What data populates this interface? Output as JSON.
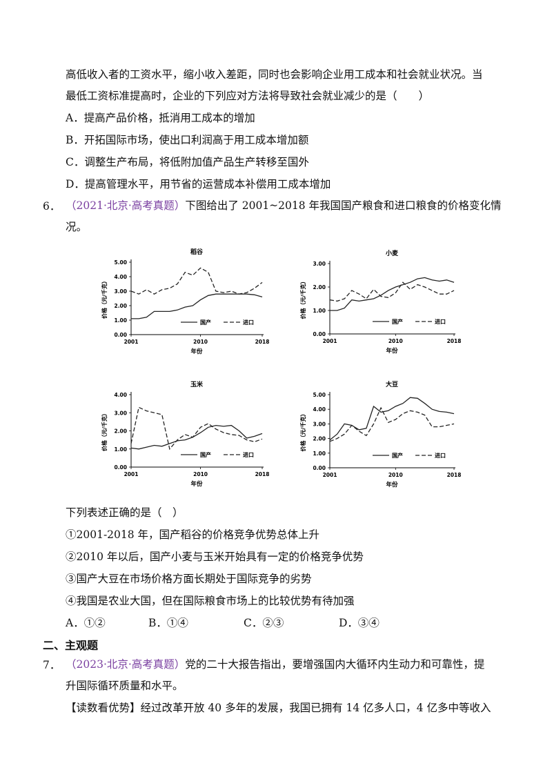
{
  "q5": {
    "line1": "高低收入者的工资水平，缩小收入差距，同时也会影响企业用工成本和社会就业状况。当",
    "line2": "最低工资标准提高时，企业的下列应对方法将导致社会就业减少的是（　　）",
    "options": [
      "A．提高产品价格，抵消用工成本的增加",
      "B．开拓国际市场，使出口利润高于用工成本增加额",
      "C．调整生产布局，将低附加值产品生产转移至国外",
      "D．提高管理水平，用节省的运营成本补偿用工成本增加"
    ]
  },
  "q6": {
    "number": "6．",
    "source": "（2021·北京·高考真题）",
    "stem1": "下图给出了 2001~2018 年我国国产粮食和进口粮食的价格变化情",
    "stem2": "况。",
    "prompt": "下列表述正确的是（　）",
    "statements": [
      "①2001-2018 年，国产稻谷的价格竞争优势总体上升",
      "②2010 年以后，国产小麦与玉米开始具有一定的价格竞争优势",
      "③国产大豆在市场价格方面长期处于国际竞争的劣势",
      "④我国是农业大国，但在国际粮食市场上的比较优势有待加强"
    ],
    "choices": [
      "A．①②",
      "B．①④",
      "C．②③",
      "D．③④"
    ]
  },
  "section": "二、主观题",
  "q7": {
    "number": "7．",
    "source": "（2023·北京·高考真题）",
    "stem1": "党的二十大报告指出，要增强国内大循环内生动力和可靠性，提",
    "stem2": "升国际循环质量和水平。",
    "para1": "【读数看优势】经过改革开放 40 多年的发展，我国已拥有 14 亿多人口，4 亿多中等收入"
  },
  "chart_data": [
    {
      "type": "line",
      "title": "稻谷",
      "xlabel": "年份",
      "ylabel": "价格（元/千克）",
      "xticks": [
        "2001",
        "2010",
        "2018"
      ],
      "ylim": [
        0,
        5
      ],
      "yticks": [
        "0.00",
        "1.00",
        "2.00",
        "3.00",
        "4.00",
        "5.00"
      ],
      "x": [
        2001,
        2002,
        2003,
        2004,
        2005,
        2006,
        2007,
        2008,
        2009,
        2010,
        2011,
        2012,
        2013,
        2014,
        2015,
        2016,
        2017,
        2018
      ],
      "series": [
        {
          "name": "国产",
          "style": "solid",
          "values": [
            1.1,
            1.1,
            1.2,
            1.6,
            1.6,
            1.6,
            1.7,
            1.9,
            2.0,
            2.4,
            2.7,
            2.8,
            2.8,
            2.8,
            2.8,
            2.8,
            2.75,
            2.6
          ]
        },
        {
          "name": "进口",
          "style": "dashed",
          "values": [
            3.0,
            2.8,
            3.1,
            2.8,
            3.1,
            3.2,
            3.5,
            4.3,
            4.1,
            4.6,
            4.3,
            3.0,
            2.9,
            3.0,
            2.8,
            2.9,
            3.2,
            3.6
          ]
        }
      ]
    },
    {
      "type": "line",
      "title": "小麦",
      "xlabel": "年份",
      "ylabel": "价格（元/千克）",
      "xticks": [
        "2001",
        "2010",
        "2018"
      ],
      "ylim": [
        0,
        3
      ],
      "yticks": [
        "0.00",
        "1.00",
        "2.00",
        "3.00"
      ],
      "x": [
        2001,
        2002,
        2003,
        2004,
        2005,
        2006,
        2007,
        2008,
        2009,
        2010,
        2011,
        2012,
        2013,
        2014,
        2015,
        2016,
        2017,
        2018
      ],
      "series": [
        {
          "name": "国产",
          "style": "solid",
          "values": [
            1.0,
            1.0,
            1.1,
            1.45,
            1.4,
            1.45,
            1.5,
            1.65,
            1.85,
            2.0,
            2.1,
            2.2,
            2.35,
            2.4,
            2.3,
            2.25,
            2.3,
            2.2
          ]
        },
        {
          "name": "进口",
          "style": "dashed",
          "values": [
            1.45,
            1.4,
            1.5,
            1.85,
            1.7,
            1.5,
            1.9,
            1.6,
            1.55,
            1.75,
            2.2,
            1.9,
            2.1,
            2.0,
            1.85,
            1.7,
            1.7,
            1.85
          ]
        }
      ]
    },
    {
      "type": "line",
      "title": "玉米",
      "xlabel": "年份",
      "ylabel": "价格（元/千克）",
      "xticks": [
        "2001",
        "2010",
        "2018"
      ],
      "ylim": [
        0,
        4
      ],
      "yticks": [
        "0.00",
        "1.00",
        "2.00",
        "3.00",
        "4.00"
      ],
      "x": [
        2001,
        2002,
        2003,
        2004,
        2005,
        2006,
        2007,
        2008,
        2009,
        2010,
        2011,
        2012,
        2013,
        2014,
        2015,
        2016,
        2017,
        2018
      ],
      "series": [
        {
          "name": "国产",
          "style": "solid",
          "values": [
            1.05,
            1.0,
            1.1,
            1.2,
            1.15,
            1.3,
            1.45,
            1.5,
            1.65,
            1.9,
            2.2,
            2.3,
            2.25,
            2.3,
            2.0,
            1.6,
            1.7,
            1.85
          ]
        },
        {
          "name": "进口",
          "style": "dashed",
          "values": [
            1.3,
            3.3,
            3.1,
            3.0,
            2.9,
            1.0,
            1.5,
            1.8,
            1.65,
            2.2,
            2.4,
            2.1,
            1.9,
            1.8,
            1.75,
            1.5,
            1.4,
            1.55
          ]
        }
      ]
    },
    {
      "type": "line",
      "title": "大豆",
      "xlabel": "年份",
      "ylabel": "价格（元/千克）",
      "xticks": [
        "2001",
        "2010",
        "2018"
      ],
      "ylim": [
        0,
        5
      ],
      "yticks": [
        "0.00",
        "1.00",
        "2.00",
        "3.00",
        "4.00",
        "5.00"
      ],
      "x": [
        2001,
        2002,
        2003,
        2004,
        2005,
        2006,
        2007,
        2008,
        2009,
        2010,
        2011,
        2012,
        2013,
        2014,
        2015,
        2016,
        2017,
        2018
      ],
      "series": [
        {
          "name": "国产",
          "style": "solid",
          "values": [
            1.9,
            2.3,
            3.0,
            2.9,
            2.6,
            2.7,
            4.2,
            3.8,
            3.9,
            4.2,
            4.4,
            4.8,
            4.75,
            4.4,
            4.0,
            3.85,
            3.8,
            3.7
          ]
        },
        {
          "name": "进口",
          "style": "dashed",
          "values": [
            1.8,
            2.0,
            2.3,
            2.9,
            2.5,
            2.2,
            3.0,
            4.1,
            3.1,
            3.3,
            3.7,
            3.9,
            3.8,
            3.6,
            2.8,
            2.8,
            2.9,
            3.0
          ]
        }
      ]
    }
  ]
}
